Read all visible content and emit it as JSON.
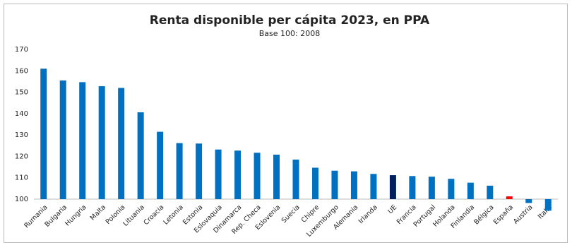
{
  "chart_data": {
    "type": "bar",
    "title": "Renta disponible per cápita 2023, en PPA",
    "subtitle": "Base 100: 2008",
    "categories": [
      "Rumania",
      "Bulgaria",
      "Hungria",
      "Malta",
      "Polonia",
      "Lituania",
      "Croacia",
      "Letonia",
      "Estonia",
      "Eslovaquia",
      "Dinamarca",
      "Rep. Checa",
      "Eslovenia",
      "Suecia",
      "Chipre",
      "Luxemburgo",
      "Alemania",
      "Irlanda",
      "UE",
      "Francia",
      "Portugal",
      "Holanda",
      "Finlandia",
      "Bélgica",
      "España",
      "Austria",
      "Italia"
    ],
    "values": [
      161,
      155.5,
      154.7,
      152.8,
      152,
      140.6,
      131.5,
      126.2,
      126,
      123.2,
      122.7,
      121.7,
      120.8,
      118.5,
      114.7,
      113.3,
      113,
      111.8,
      111.2,
      110.8,
      110.5,
      109.5,
      107.7,
      106.3,
      101.3,
      98.2,
      94.6
    ],
    "colors": [
      "#0070c0",
      "#0070c0",
      "#0070c0",
      "#0070c0",
      "#0070c0",
      "#0070c0",
      "#0070c0",
      "#0070c0",
      "#0070c0",
      "#0070c0",
      "#0070c0",
      "#0070c0",
      "#0070c0",
      "#0070c0",
      "#0070c0",
      "#0070c0",
      "#0070c0",
      "#0070c0",
      "#002060",
      "#0070c0",
      "#0070c0",
      "#0070c0",
      "#0070c0",
      "#0070c0",
      "#ff0000",
      "#0070c0",
      "#0070c0"
    ],
    "baseline": 100,
    "ylim": [
      93,
      170
    ],
    "yticks": [
      100,
      110,
      120,
      130,
      140,
      150,
      160,
      170
    ],
    "grid": false
  }
}
